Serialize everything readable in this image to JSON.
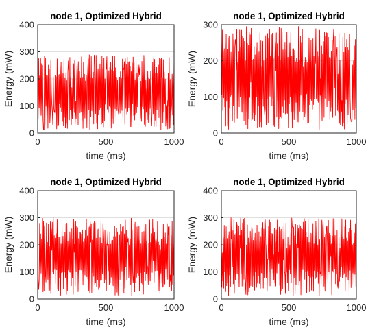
{
  "chart_data": [
    {
      "type": "line",
      "title": "node 1, Optimized Hybrid",
      "xlabel": "time (ms)",
      "ylabel": "Energy (mW)",
      "xlim": [
        0,
        1000
      ],
      "ylim": [
        0,
        400
      ],
      "xticks": [
        "0",
        "500",
        "1000"
      ],
      "yticks": [
        "0",
        "100",
        "200",
        "300",
        "400"
      ],
      "grid": true,
      "color": "#ff0000",
      "series": [
        {
          "x_range": [
            0,
            1000
          ],
          "y_range": [
            10,
            290
          ],
          "points": 280
        }
      ]
    },
    {
      "type": "line",
      "title": "node 1, Optimized Hybrid",
      "xlabel": "time (ms)",
      "ylabel": "Energy (mW)",
      "xlim": [
        0,
        1000
      ],
      "ylim": [
        0,
        300
      ],
      "xticks": [
        "0",
        "500",
        "1000"
      ],
      "yticks": [
        "0",
        "100",
        "200",
        "300"
      ],
      "grid": true,
      "color": "#ff0000",
      "series": [
        {
          "x_range": [
            0,
            1000
          ],
          "y_range": [
            10,
            295
          ],
          "points": 280
        }
      ]
    },
    {
      "type": "line",
      "title": "node 1, Optimized Hybrid",
      "xlabel": "time (ms)",
      "ylabel": "Energy (mW)",
      "xlim": [
        0,
        1000
      ],
      "ylim": [
        0,
        400
      ],
      "xticks": [
        "0",
        "500",
        "1000"
      ],
      "yticks": [
        "0",
        "100",
        "200",
        "300",
        "400"
      ],
      "grid": true,
      "color": "#ff0000",
      "series": [
        {
          "x_range": [
            0,
            1000
          ],
          "y_range": [
            10,
            300
          ],
          "points": 280
        }
      ]
    },
    {
      "type": "line",
      "title": "node 1, Optimized Hybrid",
      "xlabel": "time (ms)",
      "ylabel": "Energy (mW)",
      "xlim": [
        0,
        1000
      ],
      "ylim": [
        0,
        400
      ],
      "xticks": [
        "0",
        "500",
        "1000"
      ],
      "yticks": [
        "0",
        "100",
        "200",
        "300",
        "400"
      ],
      "grid": true,
      "color": "#ff0000",
      "series": [
        {
          "x_range": [
            0,
            1000
          ],
          "y_range": [
            10,
            300
          ],
          "points": 280
        }
      ]
    }
  ]
}
